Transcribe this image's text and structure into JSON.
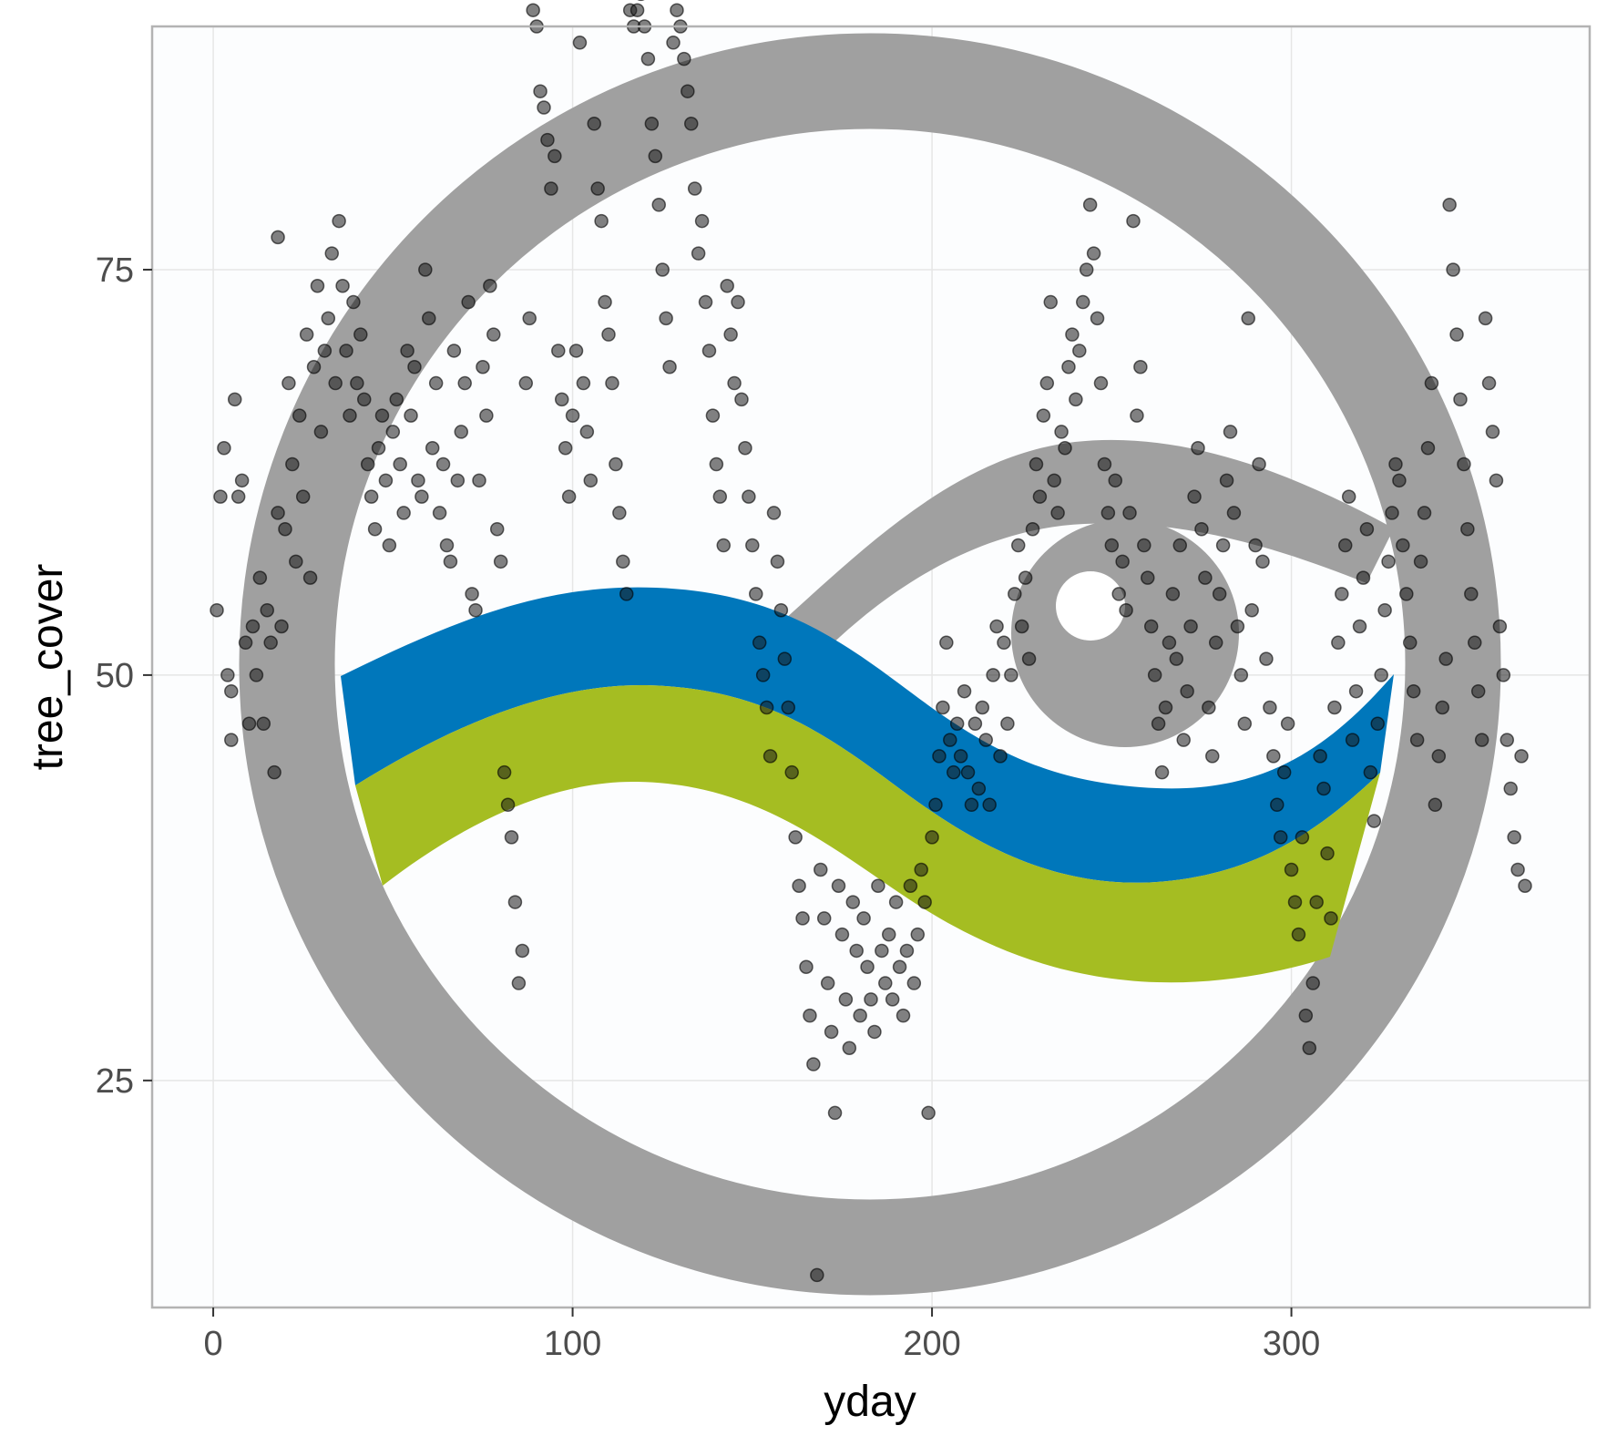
{
  "chart_data": {
    "type": "scatter",
    "title": "",
    "xlabel": "yday",
    "ylabel": "tree_cover",
    "xlim": [
      -17,
      383
    ],
    "ylim": [
      11,
      90
    ],
    "x_ticks": [
      0,
      100,
      200,
      300
    ],
    "y_ticks": [
      25,
      50,
      75
    ],
    "x_tick_labels": [
      "0",
      "100",
      "200",
      "300"
    ],
    "y_tick_labels": [
      "25",
      "50",
      "75"
    ],
    "grid": true,
    "legend": "none",
    "background_image": "logo: grey ring with eye and blue/green wave",
    "colors": {
      "points_fill": "#1a1a1a",
      "points_fill_opacity": 0.55,
      "panel_border": "#b3b3b3",
      "grid": "#e6e6e6",
      "panel_bg": "#fcfdfe",
      "logo_grey": "#a0a0a0",
      "logo_blue": "#0077bb",
      "logo_green": "#a5bd22"
    },
    "points": [
      [
        1,
        54
      ],
      [
        2,
        61
      ],
      [
        3,
        64
      ],
      [
        4,
        50
      ],
      [
        5,
        49
      ],
      [
        5,
        46
      ],
      [
        6,
        67
      ],
      [
        7,
        61
      ],
      [
        8,
        62
      ],
      [
        9,
        52
      ],
      [
        10,
        47
      ],
      [
        11,
        53
      ],
      [
        12,
        50
      ],
      [
        13,
        56
      ],
      [
        14,
        47
      ],
      [
        15,
        54
      ],
      [
        16,
        52
      ],
      [
        17,
        44
      ],
      [
        18,
        77
      ],
      [
        18,
        60
      ],
      [
        19,
        53
      ],
      [
        20,
        59
      ],
      [
        21,
        68
      ],
      [
        22,
        63
      ],
      [
        23,
        57
      ],
      [
        24,
        66
      ],
      [
        25,
        61
      ],
      [
        26,
        71
      ],
      [
        27,
        56
      ],
      [
        28,
        69
      ],
      [
        29,
        74
      ],
      [
        30,
        65
      ],
      [
        31,
        70
      ],
      [
        32,
        72
      ],
      [
        33,
        76
      ],
      [
        34,
        68
      ],
      [
        35,
        78
      ],
      [
        36,
        74
      ],
      [
        37,
        70
      ],
      [
        38,
        66
      ],
      [
        39,
        73
      ],
      [
        40,
        68
      ],
      [
        41,
        71
      ],
      [
        42,
        67
      ],
      [
        43,
        63
      ],
      [
        44,
        61
      ],
      [
        45,
        59
      ],
      [
        46,
        64
      ],
      [
        47,
        66
      ],
      [
        48,
        62
      ],
      [
        49,
        58
      ],
      [
        50,
        65
      ],
      [
        51,
        67
      ],
      [
        52,
        63
      ],
      [
        53,
        60
      ],
      [
        54,
        70
      ],
      [
        55,
        66
      ],
      [
        56,
        69
      ],
      [
        57,
        62
      ],
      [
        58,
        61
      ],
      [
        59,
        75
      ],
      [
        60,
        72
      ],
      [
        61,
        64
      ],
      [
        62,
        68
      ],
      [
        63,
        60
      ],
      [
        64,
        63
      ],
      [
        65,
        58
      ],
      [
        66,
        57
      ],
      [
        67,
        70
      ],
      [
        68,
        62
      ],
      [
        69,
        65
      ],
      [
        70,
        68
      ],
      [
        71,
        73
      ],
      [
        72,
        55
      ],
      [
        73,
        54
      ],
      [
        74,
        62
      ],
      [
        75,
        69
      ],
      [
        76,
        66
      ],
      [
        77,
        74
      ],
      [
        78,
        71
      ],
      [
        79,
        59
      ],
      [
        80,
        57
      ],
      [
        81,
        44
      ],
      [
        82,
        42
      ],
      [
        83,
        40
      ],
      [
        84,
        36
      ],
      [
        85,
        31
      ],
      [
        86,
        33
      ],
      [
        87,
        68
      ],
      [
        88,
        72
      ],
      [
        89,
        91
      ],
      [
        90,
        90
      ],
      [
        91,
        86
      ],
      [
        92,
        85
      ],
      [
        93,
        83
      ],
      [
        94,
        80
      ],
      [
        95,
        82
      ],
      [
        96,
        70
      ],
      [
        97,
        67
      ],
      [
        98,
        64
      ],
      [
        99,
        61
      ],
      [
        100,
        66
      ],
      [
        101,
        70
      ],
      [
        102,
        89
      ],
      [
        103,
        68
      ],
      [
        104,
        65
      ],
      [
        105,
        62
      ],
      [
        106,
        84
      ],
      [
        107,
        80
      ],
      [
        108,
        78
      ],
      [
        109,
        73
      ],
      [
        110,
        71
      ],
      [
        111,
        68
      ],
      [
        112,
        63
      ],
      [
        113,
        60
      ],
      [
        114,
        57
      ],
      [
        115,
        55
      ],
      [
        116,
        91
      ],
      [
        117,
        90
      ],
      [
        118,
        91
      ],
      [
        119,
        92
      ],
      [
        120,
        90
      ],
      [
        121,
        88
      ],
      [
        122,
        84
      ],
      [
        123,
        82
      ],
      [
        124,
        79
      ],
      [
        125,
        75
      ],
      [
        126,
        72
      ],
      [
        127,
        69
      ],
      [
        128,
        89
      ],
      [
        129,
        91
      ],
      [
        130,
        90
      ],
      [
        131,
        88
      ],
      [
        132,
        86
      ],
      [
        133,
        84
      ],
      [
        134,
        80
      ],
      [
        135,
        76
      ],
      [
        136,
        78
      ],
      [
        137,
        73
      ],
      [
        138,
        70
      ],
      [
        139,
        66
      ],
      [
        140,
        63
      ],
      [
        141,
        61
      ],
      [
        142,
        58
      ],
      [
        143,
        74
      ],
      [
        144,
        71
      ],
      [
        145,
        68
      ],
      [
        146,
        73
      ],
      [
        147,
        67
      ],
      [
        148,
        64
      ],
      [
        149,
        61
      ],
      [
        150,
        58
      ],
      [
        151,
        55
      ],
      [
        152,
        52
      ],
      [
        153,
        50
      ],
      [
        154,
        48
      ],
      [
        155,
        45
      ],
      [
        156,
        60
      ],
      [
        157,
        57
      ],
      [
        158,
        54
      ],
      [
        159,
        51
      ],
      [
        160,
        48
      ],
      [
        161,
        44
      ],
      [
        162,
        40
      ],
      [
        163,
        37
      ],
      [
        164,
        35
      ],
      [
        165,
        32
      ],
      [
        166,
        29
      ],
      [
        167,
        26
      ],
      [
        168,
        13
      ],
      [
        169,
        38
      ],
      [
        170,
        35
      ],
      [
        171,
        31
      ],
      [
        172,
        28
      ],
      [
        173,
        23
      ],
      [
        174,
        37
      ],
      [
        175,
        34
      ],
      [
        176,
        30
      ],
      [
        177,
        27
      ],
      [
        178,
        36
      ],
      [
        179,
        33
      ],
      [
        180,
        29
      ],
      [
        181,
        35
      ],
      [
        182,
        32
      ],
      [
        183,
        30
      ],
      [
        184,
        28
      ],
      [
        185,
        37
      ],
      [
        186,
        33
      ],
      [
        187,
        31
      ],
      [
        188,
        34
      ],
      [
        189,
        30
      ],
      [
        190,
        36
      ],
      [
        191,
        32
      ],
      [
        192,
        29
      ],
      [
        193,
        33
      ],
      [
        194,
        37
      ],
      [
        195,
        31
      ],
      [
        196,
        34
      ],
      [
        197,
        38
      ],
      [
        198,
        36
      ],
      [
        199,
        23
      ],
      [
        200,
        40
      ],
      [
        201,
        42
      ],
      [
        202,
        45
      ],
      [
        203,
        48
      ],
      [
        204,
        52
      ],
      [
        205,
        46
      ],
      [
        206,
        44
      ],
      [
        207,
        47
      ],
      [
        208,
        45
      ],
      [
        209,
        49
      ],
      [
        210,
        44
      ],
      [
        211,
        42
      ],
      [
        212,
        47
      ],
      [
        213,
        43
      ],
      [
        214,
        48
      ],
      [
        215,
        46
      ],
      [
        216,
        42
      ],
      [
        217,
        50
      ],
      [
        218,
        53
      ],
      [
        219,
        45
      ],
      [
        220,
        52
      ],
      [
        221,
        47
      ],
      [
        222,
        50
      ],
      [
        223,
        55
      ],
      [
        224,
        58
      ],
      [
        225,
        53
      ],
      [
        226,
        56
      ],
      [
        227,
        51
      ],
      [
        228,
        59
      ],
      [
        229,
        63
      ],
      [
        230,
        61
      ],
      [
        231,
        66
      ],
      [
        232,
        68
      ],
      [
        233,
        73
      ],
      [
        234,
        62
      ],
      [
        235,
        60
      ],
      [
        236,
        65
      ],
      [
        237,
        64
      ],
      [
        238,
        69
      ],
      [
        239,
        71
      ],
      [
        240,
        67
      ],
      [
        241,
        70
      ],
      [
        242,
        73
      ],
      [
        243,
        75
      ],
      [
        244,
        79
      ],
      [
        245,
        76
      ],
      [
        246,
        72
      ],
      [
        247,
        68
      ],
      [
        248,
        63
      ],
      [
        249,
        60
      ],
      [
        250,
        58
      ],
      [
        251,
        62
      ],
      [
        252,
        55
      ],
      [
        253,
        57
      ],
      [
        254,
        54
      ],
      [
        255,
        60
      ],
      [
        256,
        78
      ],
      [
        257,
        66
      ],
      [
        258,
        69
      ],
      [
        259,
        58
      ],
      [
        260,
        56
      ],
      [
        261,
        53
      ],
      [
        262,
        50
      ],
      [
        263,
        47
      ],
      [
        264,
        44
      ],
      [
        265,
        48
      ],
      [
        266,
        52
      ],
      [
        267,
        55
      ],
      [
        268,
        51
      ],
      [
        269,
        58
      ],
      [
        270,
        46
      ],
      [
        271,
        49
      ],
      [
        272,
        53
      ],
      [
        273,
        61
      ],
      [
        274,
        64
      ],
      [
        275,
        59
      ],
      [
        276,
        56
      ],
      [
        277,
        48
      ],
      [
        278,
        45
      ],
      [
        279,
        52
      ],
      [
        280,
        55
      ],
      [
        281,
        58
      ],
      [
        282,
        62
      ],
      [
        283,
        65
      ],
      [
        284,
        60
      ],
      [
        285,
        53
      ],
      [
        286,
        50
      ],
      [
        287,
        47
      ],
      [
        288,
        72
      ],
      [
        289,
        54
      ],
      [
        290,
        58
      ],
      [
        291,
        63
      ],
      [
        292,
        57
      ],
      [
        293,
        51
      ],
      [
        294,
        48
      ],
      [
        295,
        45
      ],
      [
        296,
        42
      ],
      [
        297,
        40
      ],
      [
        298,
        44
      ],
      [
        299,
        47
      ],
      [
        300,
        38
      ],
      [
        301,
        36
      ],
      [
        302,
        34
      ],
      [
        303,
        40
      ],
      [
        304,
        29
      ],
      [
        305,
        27
      ],
      [
        306,
        31
      ],
      [
        307,
        36
      ],
      [
        308,
        45
      ],
      [
        309,
        43
      ],
      [
        310,
        39
      ],
      [
        311,
        35
      ],
      [
        312,
        48
      ],
      [
        313,
        52
      ],
      [
        314,
        55
      ],
      [
        315,
        58
      ],
      [
        316,
        61
      ],
      [
        317,
        46
      ],
      [
        318,
        49
      ],
      [
        319,
        53
      ],
      [
        320,
        56
      ],
      [
        321,
        59
      ],
      [
        322,
        44
      ],
      [
        323,
        41
      ],
      [
        324,
        47
      ],
      [
        325,
        50
      ],
      [
        326,
        54
      ],
      [
        327,
        57
      ],
      [
        328,
        60
      ],
      [
        329,
        63
      ],
      [
        330,
        62
      ],
      [
        331,
        58
      ],
      [
        332,
        55
      ],
      [
        333,
        52
      ],
      [
        334,
        49
      ],
      [
        335,
        46
      ],
      [
        336,
        57
      ],
      [
        337,
        60
      ],
      [
        338,
        64
      ],
      [
        339,
        68
      ],
      [
        340,
        42
      ],
      [
        341,
        45
      ],
      [
        342,
        48
      ],
      [
        343,
        51
      ],
      [
        344,
        79
      ],
      [
        345,
        75
      ],
      [
        346,
        71
      ],
      [
        347,
        67
      ],
      [
        348,
        63
      ],
      [
        349,
        59
      ],
      [
        350,
        55
      ],
      [
        351,
        52
      ],
      [
        352,
        49
      ],
      [
        353,
        46
      ],
      [
        354,
        72
      ],
      [
        355,
        68
      ],
      [
        356,
        65
      ],
      [
        357,
        62
      ],
      [
        358,
        53
      ],
      [
        359,
        50
      ],
      [
        360,
        46
      ],
      [
        361,
        43
      ],
      [
        362,
        40
      ],
      [
        363,
        38
      ],
      [
        364,
        45
      ],
      [
        365,
        37
      ]
    ]
  }
}
